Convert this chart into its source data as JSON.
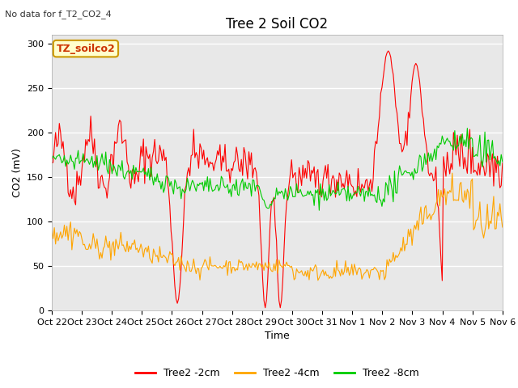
{
  "title": "Tree 2 Soil CO2",
  "subtitle": "No data for f_T2_CO2_4",
  "xlabel": "Time",
  "ylabel": "CO2 (mV)",
  "ylim": [
    0,
    310
  ],
  "yticks": [
    0,
    50,
    100,
    150,
    200,
    250,
    300
  ],
  "xtick_labels": [
    "Oct 22",
    "Oct 23",
    "Oct 24",
    "Oct 25",
    "Oct 26",
    "Oct 27",
    "Oct 28",
    "Oct 29",
    "Oct 30",
    "Oct 31",
    "Nov 1",
    "Nov 2",
    "Nov 3",
    "Nov 4",
    "Nov 5",
    "Nov 6"
  ],
  "legend_labels": [
    "Tree2 -2cm",
    "Tree2 -4cm",
    "Tree2 -8cm"
  ],
  "legend_colors": [
    "#ff0000",
    "#ffa500",
    "#00cc00"
  ],
  "box_label": "TZ_soilco2",
  "line_colors": [
    "#ff0000",
    "#ffa500",
    "#00cc00"
  ],
  "bg_color": "#ffffff",
  "plot_bg_color": "#e8e8e8",
  "grid_color": "#ffffff",
  "title_fontsize": 12,
  "axis_fontsize": 9,
  "tick_fontsize": 8
}
